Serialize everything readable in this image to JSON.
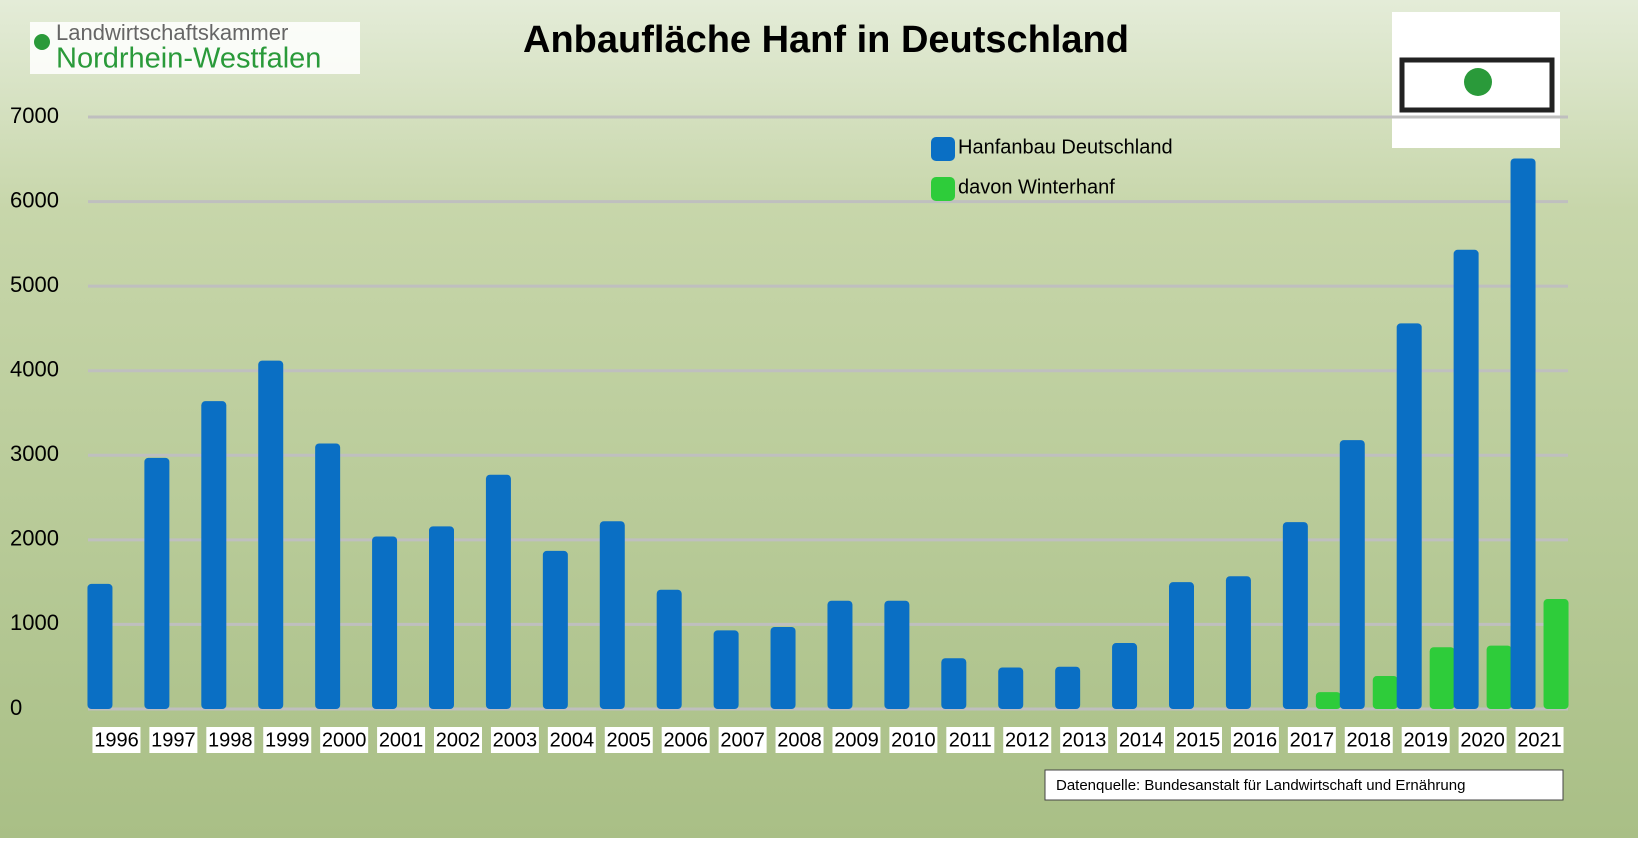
{
  "logo": {
    "line1": "Landwirtschaftskammer",
    "line2": "Nordrhein-Westfalen"
  },
  "source": "Datenquelle: Bundesanstalt für Landwirtschaft und Ernährung",
  "chart_data": {
    "type": "bar",
    "title": "Anbaufläche Hanf in Deutschland",
    "categories": [
      "1996",
      "1997",
      "1998",
      "1999",
      "2000",
      "2001",
      "2002",
      "2003",
      "2004",
      "2005",
      "2006",
      "2007",
      "2008",
      "2009",
      "2010",
      "2011",
      "2012",
      "2013",
      "2014",
      "2015",
      "2016",
      "2017",
      "2018",
      "2019",
      "2020",
      "2021"
    ],
    "series": [
      {
        "name": "Hanfanbau Deutschland",
        "color": "#0a6fc4",
        "values": [
          1480,
          2970,
          3640,
          4120,
          3140,
          2040,
          2160,
          2770,
          1870,
          2220,
          1410,
          930,
          970,
          1280,
          1280,
          600,
          490,
          500,
          780,
          1500,
          1570,
          2210,
          3180,
          4560,
          5430,
          6510
        ]
      },
      {
        "name": "davon Winterhanf",
        "color": "#2ecc3a",
        "values": [
          null,
          null,
          null,
          null,
          null,
          null,
          null,
          null,
          null,
          null,
          null,
          null,
          null,
          null,
          null,
          null,
          null,
          null,
          null,
          null,
          null,
          200,
          390,
          730,
          750,
          1300
        ]
      }
    ],
    "ylim": [
      0,
      7000
    ],
    "yticks": [
      0,
      1000,
      2000,
      3000,
      4000,
      5000,
      6000,
      7000
    ],
    "grid": true
  }
}
